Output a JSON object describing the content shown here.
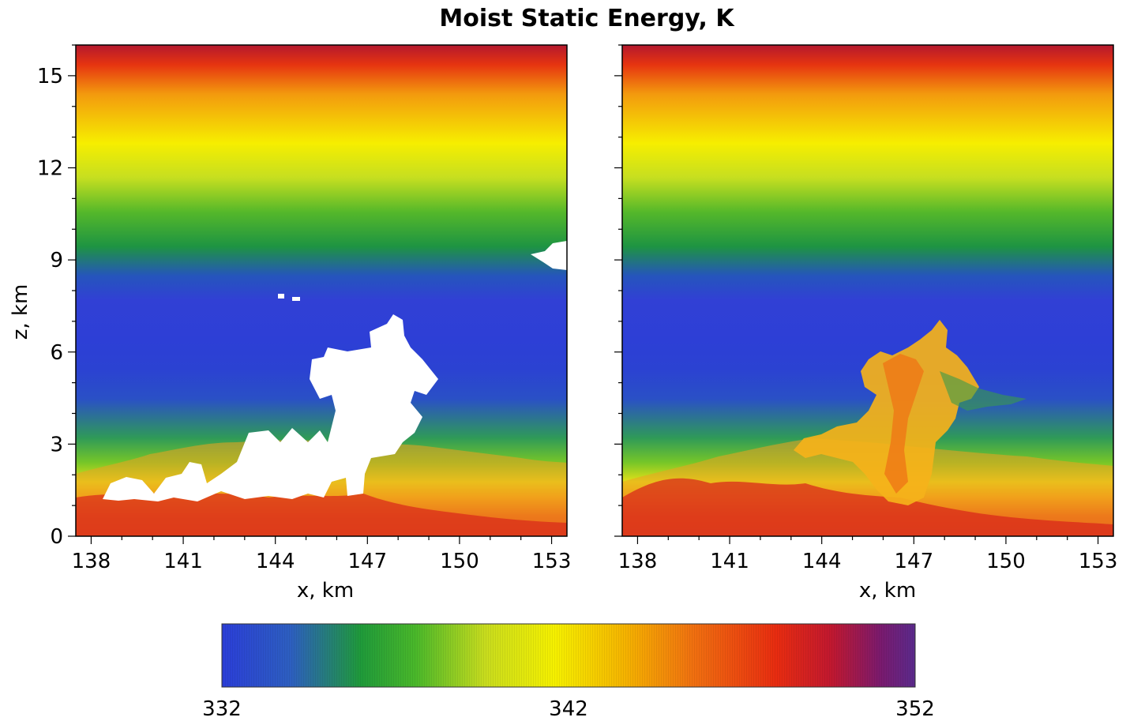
{
  "chart_data": {
    "type": "heatmap",
    "title": "Moist Static Energy, K",
    "colorbar": {
      "min": 332,
      "max": 352,
      "ticks": [
        332,
        342,
        352
      ],
      "colors": [
        "#2b3ed8",
        "#2d5fc0",
        "#1e9a3a",
        "#4ab82a",
        "#c8dc1e",
        "#f5f000",
        "#f5b400",
        "#f07010",
        "#e82c10",
        "#c01830",
        "#7a1a6e",
        "#5a2a8c"
      ]
    },
    "panels": [
      {
        "name": "left",
        "xlabel": "x, km",
        "ylabel": "z, km",
        "xlim": [
          137.5,
          153.5
        ],
        "ylim": [
          0,
          16
        ],
        "xticks": [
          138,
          141,
          144,
          147,
          150,
          153
        ],
        "yticks": [
          0,
          3,
          6,
          9,
          12,
          15
        ],
        "cloud_mask": "white",
        "stratification": [
          {
            "z": 0.5,
            "value": 349
          },
          {
            "z": 2.0,
            "value": 343
          },
          {
            "z": 3.5,
            "value": 337
          },
          {
            "z": 5.0,
            "value": 333
          },
          {
            "z": 8.0,
            "value": 332
          },
          {
            "z": 10.0,
            "value": 337
          },
          {
            "z": 12.0,
            "value": 341
          },
          {
            "z": 14.0,
            "value": 344
          },
          {
            "z": 15.5,
            "value": 350
          }
        ]
      },
      {
        "name": "right",
        "xlabel": "x, km",
        "ylabel": "",
        "xlim": [
          137.5,
          153.5
        ],
        "ylim": [
          0,
          16
        ],
        "xticks": [
          138,
          141,
          144,
          147,
          150,
          153
        ],
        "yticks": [
          0,
          3,
          6,
          9,
          12,
          15
        ],
        "cloud_mask": "none",
        "stratification": [
          {
            "z": 0.5,
            "value": 349
          },
          {
            "z": 2.0,
            "value": 343
          },
          {
            "z": 3.5,
            "value": 337
          },
          {
            "z": 5.0,
            "value": 333
          },
          {
            "z": 8.0,
            "value": 332
          },
          {
            "z": 10.0,
            "value": 337
          },
          {
            "z": 12.0,
            "value": 341
          },
          {
            "z": 14.0,
            "value": 344
          },
          {
            "z": 15.5,
            "value": 350
          }
        ]
      }
    ]
  }
}
